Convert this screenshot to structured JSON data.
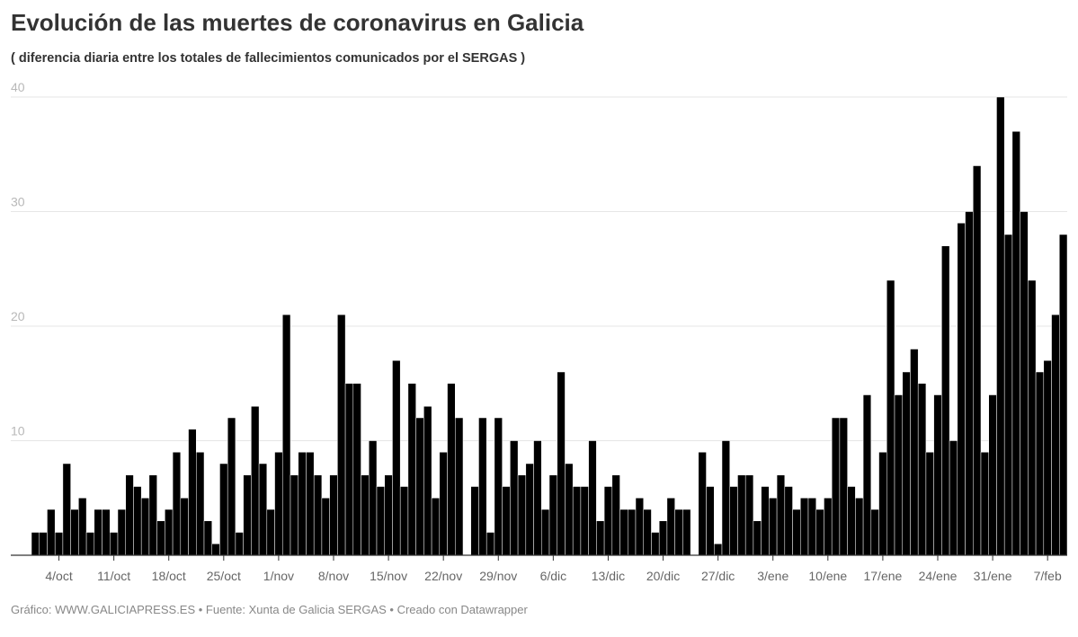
{
  "header": {
    "title": "Evolución de las muertes de coronavirus en Galicia",
    "subtitle": "( diferencia diaria entre los totales de fallecimientos comunicados por el SERGAS )"
  },
  "footer": {
    "text": "Gráfico: WWW.GALICIAPRESS.ES • Fuente: Xunta de Galicia SERGAS • Creado con Datawrapper"
  },
  "colors": {
    "bar": "#000000",
    "bar_border": "#ffffff",
    "grid": "#e6e6e6",
    "axis": "#333333"
  },
  "chart_data": {
    "type": "bar",
    "title": "Evolución de las muertes de coronavirus en Galicia",
    "subtitle": "( diferencia diaria entre los totales de fallecimientos comunicados por el SERGAS )",
    "xlabel": "",
    "ylabel": "",
    "ylim": [
      0,
      40
    ],
    "yticks": [
      10,
      20,
      30,
      40
    ],
    "grid": true,
    "x_tick_labels": [
      "4/oct",
      "11/oct",
      "18/oct",
      "25/oct",
      "1/nov",
      "8/nov",
      "15/nov",
      "22/nov",
      "29/nov",
      "6/dic",
      "13/dic",
      "20/dic",
      "27/dic",
      "3/ene",
      "10/ene",
      "17/ene",
      "24/ene",
      "31/ene",
      "7/feb"
    ],
    "first_tick_index": 3,
    "tick_every": 7,
    "values": [
      2,
      2,
      4,
      2,
      8,
      4,
      5,
      2,
      4,
      4,
      2,
      4,
      7,
      6,
      5,
      7,
      3,
      4,
      9,
      5,
      11,
      9,
      3,
      1,
      8,
      12,
      2,
      7,
      13,
      8,
      4,
      9,
      21,
      7,
      9,
      9,
      7,
      5,
      7,
      21,
      15,
      15,
      7,
      10,
      6,
      7,
      17,
      6,
      15,
      12,
      13,
      5,
      9,
      15,
      12,
      0,
      6,
      12,
      2,
      12,
      6,
      10,
      7,
      8,
      10,
      4,
      7,
      16,
      8,
      6,
      6,
      10,
      3,
      6,
      7,
      4,
      4,
      5,
      4,
      2,
      3,
      5,
      4,
      4,
      0,
      9,
      6,
      1,
      10,
      6,
      7,
      7,
      3,
      6,
      5,
      7,
      6,
      4,
      5,
      5,
      4,
      5,
      12,
      12,
      6,
      5,
      14,
      4,
      9,
      24,
      14,
      16,
      18,
      15,
      9,
      14,
      27,
      10,
      29,
      30,
      34,
      9,
      14,
      40,
      28,
      37,
      30,
      24,
      16,
      17,
      21,
      28
    ]
  }
}
